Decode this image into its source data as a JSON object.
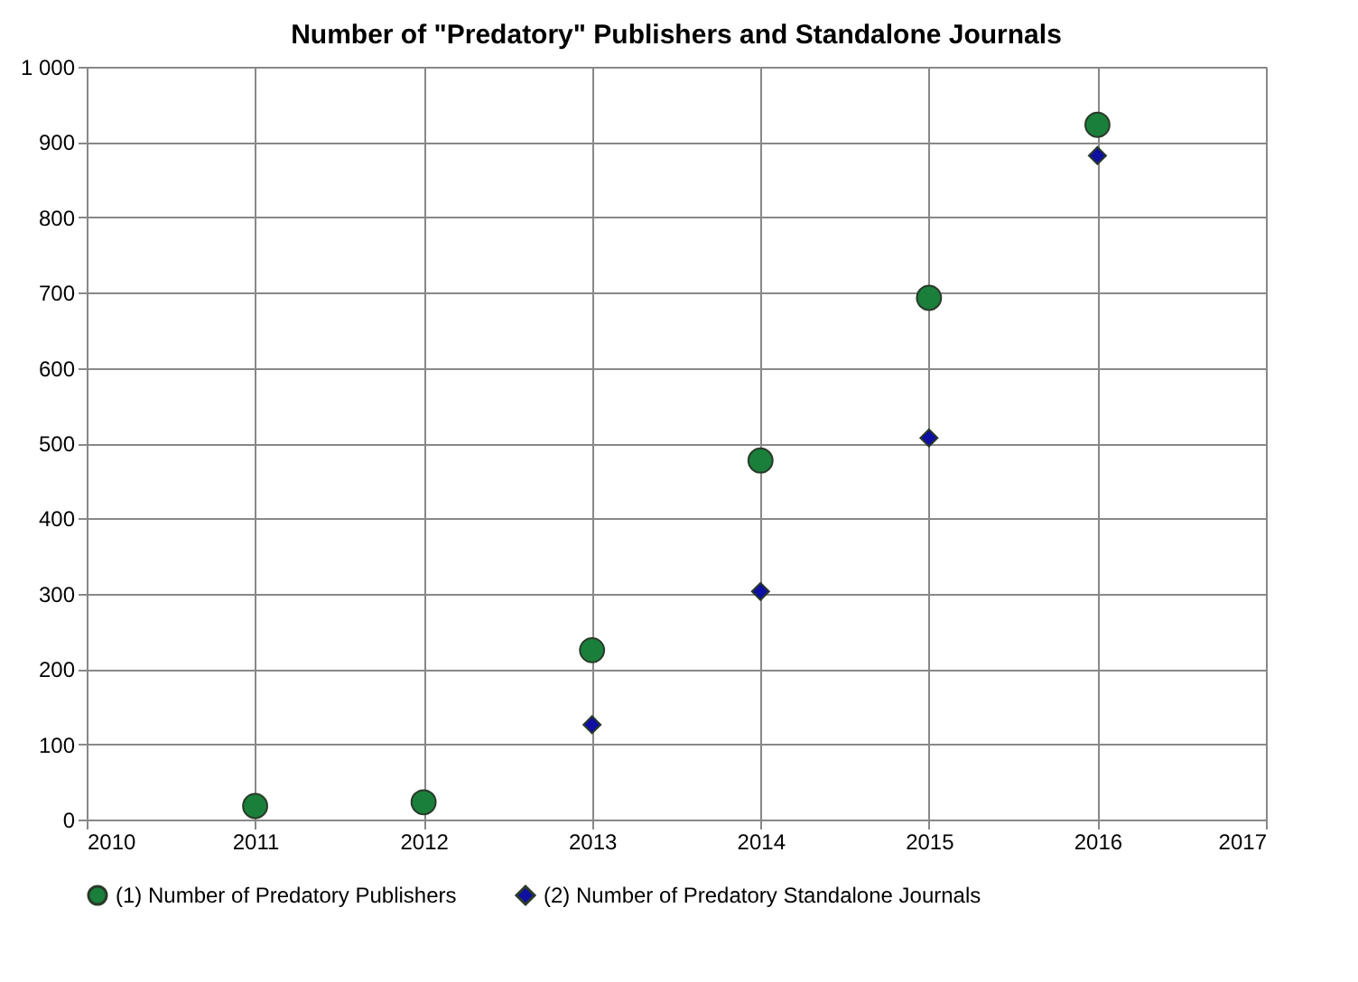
{
  "chart_data": {
    "type": "scatter",
    "title": "Number of \"Predatory\" Publishers and Standalone Journals",
    "x": [
      2011,
      2012,
      2013,
      2014,
      2015,
      2016
    ],
    "series": [
      {
        "name": "(1) Number of Predatory Publishers",
        "color": "#1a7f3a",
        "marker": "circle",
        "values": [
          18,
          23,
          225,
          477,
          693,
          923
        ]
      },
      {
        "name": "(2) Number of Predatory Standalone Journals",
        "color": "#0f0fa0",
        "marker": "diamond",
        "values": [
          null,
          null,
          126,
          303,
          507,
          882
        ]
      }
    ],
    "xlim": [
      2010,
      2017
    ],
    "xticks": [
      2010,
      2011,
      2012,
      2013,
      2014,
      2015,
      2016,
      2017
    ],
    "ylim": [
      0,
      1000
    ],
    "yticks": [
      0,
      100,
      200,
      300,
      400,
      500,
      600,
      700,
      800,
      900,
      {
        "value": 1000,
        "label": "1 000"
      }
    ],
    "grid": true,
    "legend": "bottom"
  }
}
